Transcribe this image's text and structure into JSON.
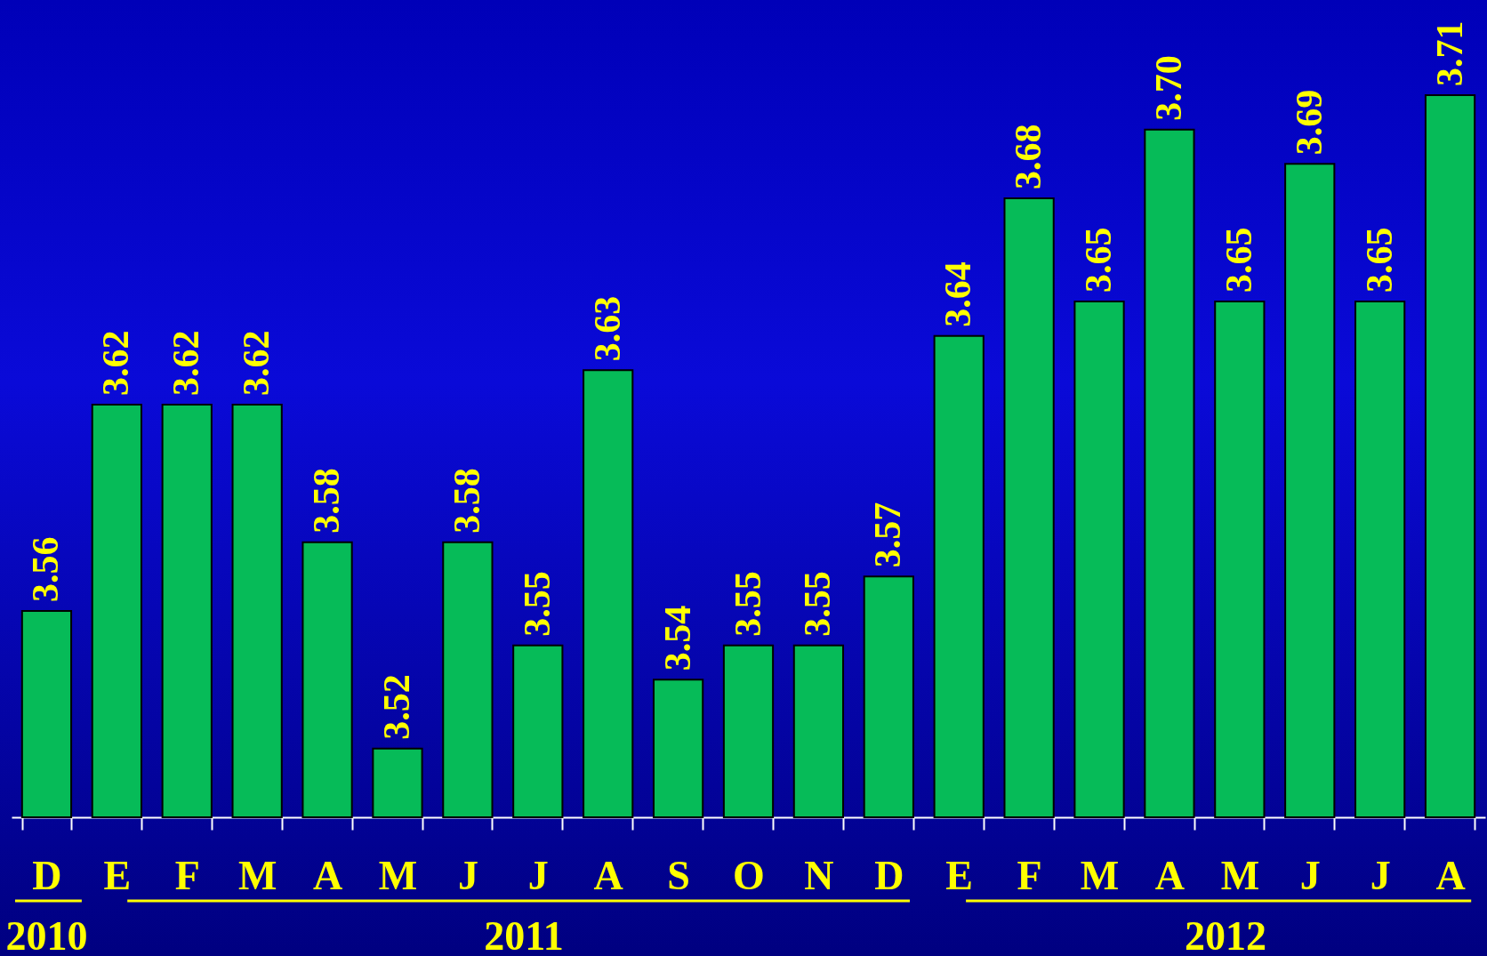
{
  "chart_data": {
    "type": "bar",
    "categories": [
      "D",
      "E",
      "F",
      "M",
      "A",
      "M",
      "J",
      "J",
      "A",
      "S",
      "O",
      "N",
      "D",
      "E",
      "F",
      "M",
      "A",
      "M",
      "J",
      "J",
      "A"
    ],
    "values": [
      3.56,
      3.62,
      3.62,
      3.62,
      3.58,
      3.52,
      3.58,
      3.55,
      3.63,
      3.54,
      3.55,
      3.55,
      3.57,
      3.64,
      3.68,
      3.65,
      3.7,
      3.65,
      3.69,
      3.65,
      3.71
    ],
    "value_labels": [
      "3.56",
      "3.62",
      "3.62",
      "3.62",
      "3.58",
      "3.52",
      "3.58",
      "3.55",
      "3.63",
      "3.54",
      "3.55",
      "3.55",
      "3.57",
      "3.64",
      "3.68",
      "3.65",
      "3.70",
      "3.65",
      "3.69",
      "3.65",
      "3.71"
    ],
    "color": "#06bb58",
    "ylim": [
      3.5,
      3.71
    ],
    "tick_labels": "x",
    "grid": false,
    "annotations": [
      "2010",
      "2011",
      "2012"
    ]
  }
}
